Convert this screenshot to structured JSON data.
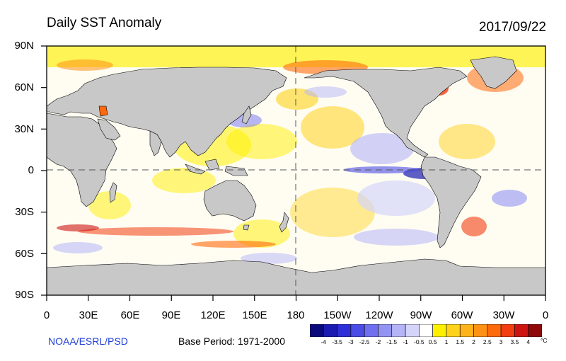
{
  "header": {
    "title": "Daily SST Anomaly",
    "date": "2017/09/22"
  },
  "axes": {
    "lat_labels": [
      "90N",
      "60N",
      "30N",
      "0",
      "30S",
      "60S",
      "90S"
    ],
    "lon_labels": [
      "0",
      "30E",
      "60E",
      "90E",
      "120E",
      "150E",
      "180",
      "150W",
      "120W",
      "90W",
      "60W",
      "30W",
      "0"
    ]
  },
  "footer": {
    "credit": "NOAA/ESRL/PSD",
    "base_period": "Base Period: 1971-2000"
  },
  "colorbar": {
    "labels": [
      "-4",
      "-3.5",
      "-3",
      "-2.5",
      "-2",
      "-1.5",
      "-1",
      "-0.5",
      "0.5",
      "1",
      "1.5",
      "2",
      "2.5",
      "3",
      "3.5",
      "4"
    ],
    "unit": "°C",
    "colors": [
      "#0b0a7a",
      "#1b1bb1",
      "#2f2fd7",
      "#4b4be6",
      "#6f6ff0",
      "#9393f4",
      "#b4b4f7",
      "#d4d4fa",
      "#ffffff",
      "#fff000",
      "#ffd21b",
      "#ffb31a",
      "#ff9214",
      "#ff6a0c",
      "#f23e10",
      "#cc1410",
      "#8e0a0a"
    ]
  },
  "map": {
    "projection": "equirectangular",
    "colors": {
      "land": "#c8c8c8",
      "sea_ice": "#ffffff",
      "zero_line": "#555555"
    }
  }
}
